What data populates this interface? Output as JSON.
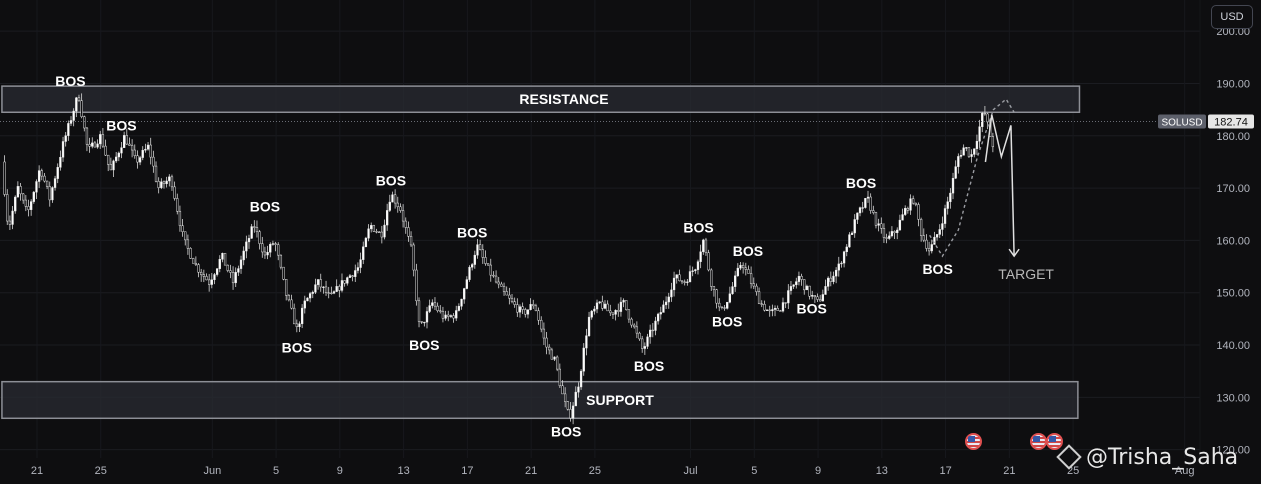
{
  "symbol": "SOLUSD",
  "currency_label": "USD",
  "last_price": "182.74",
  "watermark": "@Trisha_Saha",
  "chart_data": {
    "type": "candlestick",
    "title": "",
    "ylim": [
      116,
      206
    ],
    "y_ticks": [
      "120.00",
      "130.00",
      "140.00",
      "150.00",
      "160.00",
      "170.00",
      "180.00",
      "190.00",
      "200.00"
    ],
    "x_ticks": [
      {
        "label": "21",
        "day": 0
      },
      {
        "label": "25",
        "day": 4
      },
      {
        "label": "Jun",
        "day": 11
      },
      {
        "label": "5",
        "day": 15
      },
      {
        "label": "9",
        "day": 19
      },
      {
        "label": "13",
        "day": 23
      },
      {
        "label": "17",
        "day": 27
      },
      {
        "label": "21",
        "day": 31
      },
      {
        "label": "25",
        "day": 35
      },
      {
        "label": "Jul",
        "day": 41
      },
      {
        "label": "5",
        "day": 45
      },
      {
        "label": "9",
        "day": 49
      },
      {
        "label": "13",
        "day": 53
      },
      {
        "label": "17",
        "day": 57
      },
      {
        "label": "21",
        "day": 61
      },
      {
        "label": "25",
        "day": 65
      },
      {
        "label": "Aug",
        "day": 72
      }
    ],
    "zones": [
      {
        "name": "resistance",
        "label": "RESISTANCE",
        "low": 184.5,
        "high": 189.5,
        "start_day": -2.2,
        "end_day": 65.4
      },
      {
        "name": "support",
        "label": "SUPPORT",
        "low": 126,
        "high": 133,
        "start_day": -2.2,
        "end_day": 65.3
      }
    ],
    "price_path": [
      {
        "day": -2.2,
        "price": 175
      },
      {
        "day": -1.8,
        "price": 162
      },
      {
        "day": -1.2,
        "price": 170
      },
      {
        "day": -0.6,
        "price": 165
      },
      {
        "day": 0.2,
        "price": 174
      },
      {
        "day": 0.8,
        "price": 168
      },
      {
        "day": 1.6,
        "price": 178
      },
      {
        "day": 2.6,
        "price": 188
      },
      {
        "day": 3.2,
        "price": 177
      },
      {
        "day": 4.0,
        "price": 180
      },
      {
        "day": 4.6,
        "price": 173
      },
      {
        "day": 5.5,
        "price": 180
      },
      {
        "day": 6.2,
        "price": 175
      },
      {
        "day": 7.0,
        "price": 178
      },
      {
        "day": 7.6,
        "price": 170
      },
      {
        "day": 8.4,
        "price": 172
      },
      {
        "day": 9.2,
        "price": 160
      },
      {
        "day": 10.0,
        "price": 155
      },
      {
        "day": 10.8,
        "price": 152
      },
      {
        "day": 11.6,
        "price": 157
      },
      {
        "day": 12.3,
        "price": 152
      },
      {
        "day": 13.0,
        "price": 158
      },
      {
        "day": 13.6,
        "price": 163
      },
      {
        "day": 14.3,
        "price": 157
      },
      {
        "day": 14.9,
        "price": 160
      },
      {
        "day": 15.6,
        "price": 150
      },
      {
        "day": 16.3,
        "price": 143
      },
      {
        "day": 16.8,
        "price": 148
      },
      {
        "day": 17.6,
        "price": 152
      },
      {
        "day": 18.4,
        "price": 149
      },
      {
        "day": 19.2,
        "price": 152
      },
      {
        "day": 20.2,
        "price": 155
      },
      {
        "day": 20.9,
        "price": 163
      },
      {
        "day": 21.6,
        "price": 161
      },
      {
        "day": 22.2,
        "price": 169
      },
      {
        "day": 22.8,
        "price": 166
      },
      {
        "day": 23.5,
        "price": 158
      },
      {
        "day": 24.0,
        "price": 143
      },
      {
        "day": 24.8,
        "price": 148
      },
      {
        "day": 25.6,
        "price": 145
      },
      {
        "day": 26.3,
        "price": 146
      },
      {
        "day": 27.0,
        "price": 153
      },
      {
        "day": 27.6,
        "price": 159
      },
      {
        "day": 28.2,
        "price": 155
      },
      {
        "day": 29.0,
        "price": 151
      },
      {
        "day": 29.8,
        "price": 148
      },
      {
        "day": 30.5,
        "price": 146
      },
      {
        "day": 31.2,
        "price": 148
      },
      {
        "day": 31.9,
        "price": 140
      },
      {
        "day": 32.5,
        "price": 137
      },
      {
        "day": 33.0,
        "price": 130
      },
      {
        "day": 33.4,
        "price": 126
      },
      {
        "day": 34.0,
        "price": 133
      },
      {
        "day": 34.6,
        "price": 145
      },
      {
        "day": 35.3,
        "price": 148
      },
      {
        "day": 36.0,
        "price": 146
      },
      {
        "day": 36.8,
        "price": 148
      },
      {
        "day": 37.5,
        "price": 143
      },
      {
        "day": 38.0,
        "price": 139
      },
      {
        "day": 38.6,
        "price": 143
      },
      {
        "day": 39.4,
        "price": 148
      },
      {
        "day": 40.0,
        "price": 153
      },
      {
        "day": 40.6,
        "price": 152
      },
      {
        "day": 41.3,
        "price": 155
      },
      {
        "day": 41.8,
        "price": 160
      },
      {
        "day": 42.3,
        "price": 152
      },
      {
        "day": 42.9,
        "price": 146
      },
      {
        "day": 43.5,
        "price": 150
      },
      {
        "day": 44.2,
        "price": 156
      },
      {
        "day": 44.8,
        "price": 152
      },
      {
        "day": 45.4,
        "price": 148
      },
      {
        "day": 46.0,
        "price": 146
      },
      {
        "day": 46.6,
        "price": 147
      },
      {
        "day": 47.2,
        "price": 150
      },
      {
        "day": 47.8,
        "price": 153
      },
      {
        "day": 48.4,
        "price": 150
      },
      {
        "day": 49.0,
        "price": 148
      },
      {
        "day": 49.6,
        "price": 152
      },
      {
        "day": 50.3,
        "price": 155
      },
      {
        "day": 50.9,
        "price": 160
      },
      {
        "day": 51.5,
        "price": 165
      },
      {
        "day": 52.1,
        "price": 168
      },
      {
        "day": 52.7,
        "price": 163
      },
      {
        "day": 53.3,
        "price": 160
      },
      {
        "day": 53.9,
        "price": 162
      },
      {
        "day": 54.5,
        "price": 166
      },
      {
        "day": 55.0,
        "price": 168
      },
      {
        "day": 55.5,
        "price": 161
      },
      {
        "day": 56.0,
        "price": 158
      },
      {
        "day": 56.6,
        "price": 162
      },
      {
        "day": 57.2,
        "price": 168
      },
      {
        "day": 57.8,
        "price": 176
      },
      {
        "day": 58.2,
        "price": 178
      },
      {
        "day": 58.6,
        "price": 176
      },
      {
        "day": 59.0,
        "price": 180
      },
      {
        "day": 59.4,
        "price": 185
      },
      {
        "day": 59.8,
        "price": 180
      },
      {
        "day": 60.0,
        "price": 178
      }
    ],
    "bos_labels": [
      {
        "text": "BOS",
        "day": 2.1,
        "price": 190.5,
        "pos": "above"
      },
      {
        "text": "BOS",
        "day": 5.3,
        "price": 182.0,
        "pos": "above"
      },
      {
        "text": "BOS",
        "day": 14.3,
        "price": 166.5,
        "pos": "above"
      },
      {
        "text": "BOS",
        "day": 16.3,
        "price": 139.5,
        "pos": "below"
      },
      {
        "text": "BOS",
        "day": 22.2,
        "price": 171.5,
        "pos": "above"
      },
      {
        "text": "BOS",
        "day": 24.3,
        "price": 140.0,
        "pos": "below"
      },
      {
        "text": "BOS",
        "day": 27.3,
        "price": 161.5,
        "pos": "above"
      },
      {
        "text": "BOS",
        "day": 33.2,
        "price": 123.5,
        "pos": "below"
      },
      {
        "text": "BOS",
        "day": 38.4,
        "price": 136.0,
        "pos": "below"
      },
      {
        "text": "BOS",
        "day": 41.5,
        "price": 162.5,
        "pos": "above"
      },
      {
        "text": "BOS",
        "day": 43.3,
        "price": 144.5,
        "pos": "below"
      },
      {
        "text": "BOS",
        "day": 44.6,
        "price": 158.0,
        "pos": "above"
      },
      {
        "text": "BOS",
        "day": 48.6,
        "price": 147.0,
        "pos": "below"
      },
      {
        "text": "BOS",
        "day": 51.7,
        "price": 171.0,
        "pos": "above"
      },
      {
        "text": "BOS",
        "day": 56.5,
        "price": 154.5,
        "pos": "below"
      }
    ],
    "projection": [
      {
        "day": 59.5,
        "price": 175
      },
      {
        "day": 59.9,
        "price": 184
      },
      {
        "day": 60.5,
        "price": 176
      },
      {
        "day": 61.1,
        "price": 182
      },
      {
        "day": 61.3,
        "price": 157
      }
    ],
    "target": {
      "label": "TARGET",
      "day": 61.3,
      "price": 157
    },
    "dashed_arc": [
      {
        "day": 56.0,
        "price": 161
      },
      {
        "day": 56.8,
        "price": 157
      },
      {
        "day": 57.8,
        "price": 162
      },
      {
        "day": 59.0,
        "price": 176
      },
      {
        "day": 60.0,
        "price": 185
      },
      {
        "day": 60.8,
        "price": 187
      },
      {
        "day": 61.3,
        "price": 184.5
      }
    ]
  }
}
